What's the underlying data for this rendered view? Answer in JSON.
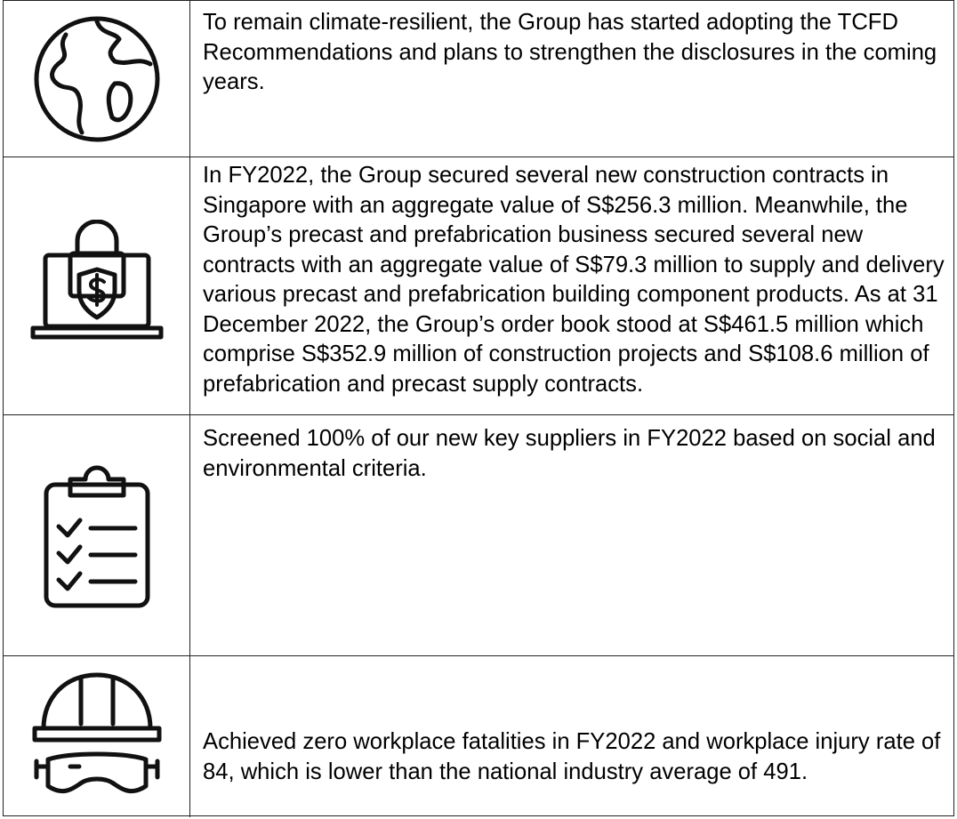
{
  "table": {
    "rows": [
      {
        "text": "To remain climate-resilient, the Group has started adopting the TCFD Recommendations and plans to strengthen the disclosures in the coming years."
      },
      {
        "text": "In FY2022, the Group secured several new construction contracts in Singapore with an aggregate value of S$256.3 million. Meanwhile, the Group’s precast and prefabrication business secured several new contracts with an aggregate value of S$79.3 million to supply and delivery various precast and prefabrication building component products. As at 31 December 2022, the Group’s order book stood at S$461.5 million which comprise S$352.9 million of construction projects and S$108.6 million of prefabrication and precast supply contracts."
      },
      {
        "text": "Screened 100% of our new key suppliers in FY2022 based on social and environmental criteria."
      },
      {
        "text": "Achieved zero workplace fatalities in FY2022 and workplace injury rate of 84, which is lower than the national industry average of 491."
      }
    ]
  }
}
